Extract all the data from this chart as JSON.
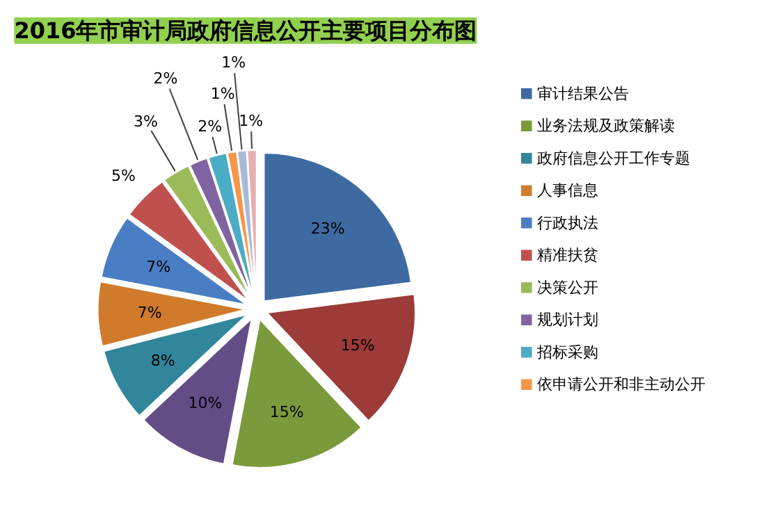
{
  "chart_data": {
    "type": "pie",
    "title": "2016年市审计局政府信息公开主要项目分布图",
    "categories": [
      "审计结果公告",
      null,
      "业务法规及政策解读",
      null,
      "政府信息公开工作专题",
      "人事信息",
      "行政执法",
      "精准扶贫",
      "决策公开",
      "规划计划",
      "招标采购",
      "依申请公开和非主动公开",
      null,
      null
    ],
    "values": [
      23,
      15,
      15,
      10,
      8,
      7,
      7,
      5,
      3,
      2,
      2,
      1,
      1,
      1
    ],
    "value_labels": [
      "23%",
      "15%",
      "15%",
      "10%",
      "8%",
      "7%",
      "7%",
      "5%",
      "3%",
      "2%",
      "2%",
      "1%",
      "1%",
      "1%"
    ],
    "colors": [
      "#3d6aa0",
      "#9c3b38",
      "#7b9a3c",
      "#634d87",
      "#31869b",
      "#d07b2c",
      "#4a7ec4",
      "#c0504d",
      "#9bbb59",
      "#8064a2",
      "#4bacc6",
      "#f79646",
      "#a8b9d8",
      "#e6b0b0"
    ],
    "legend": "right"
  }
}
